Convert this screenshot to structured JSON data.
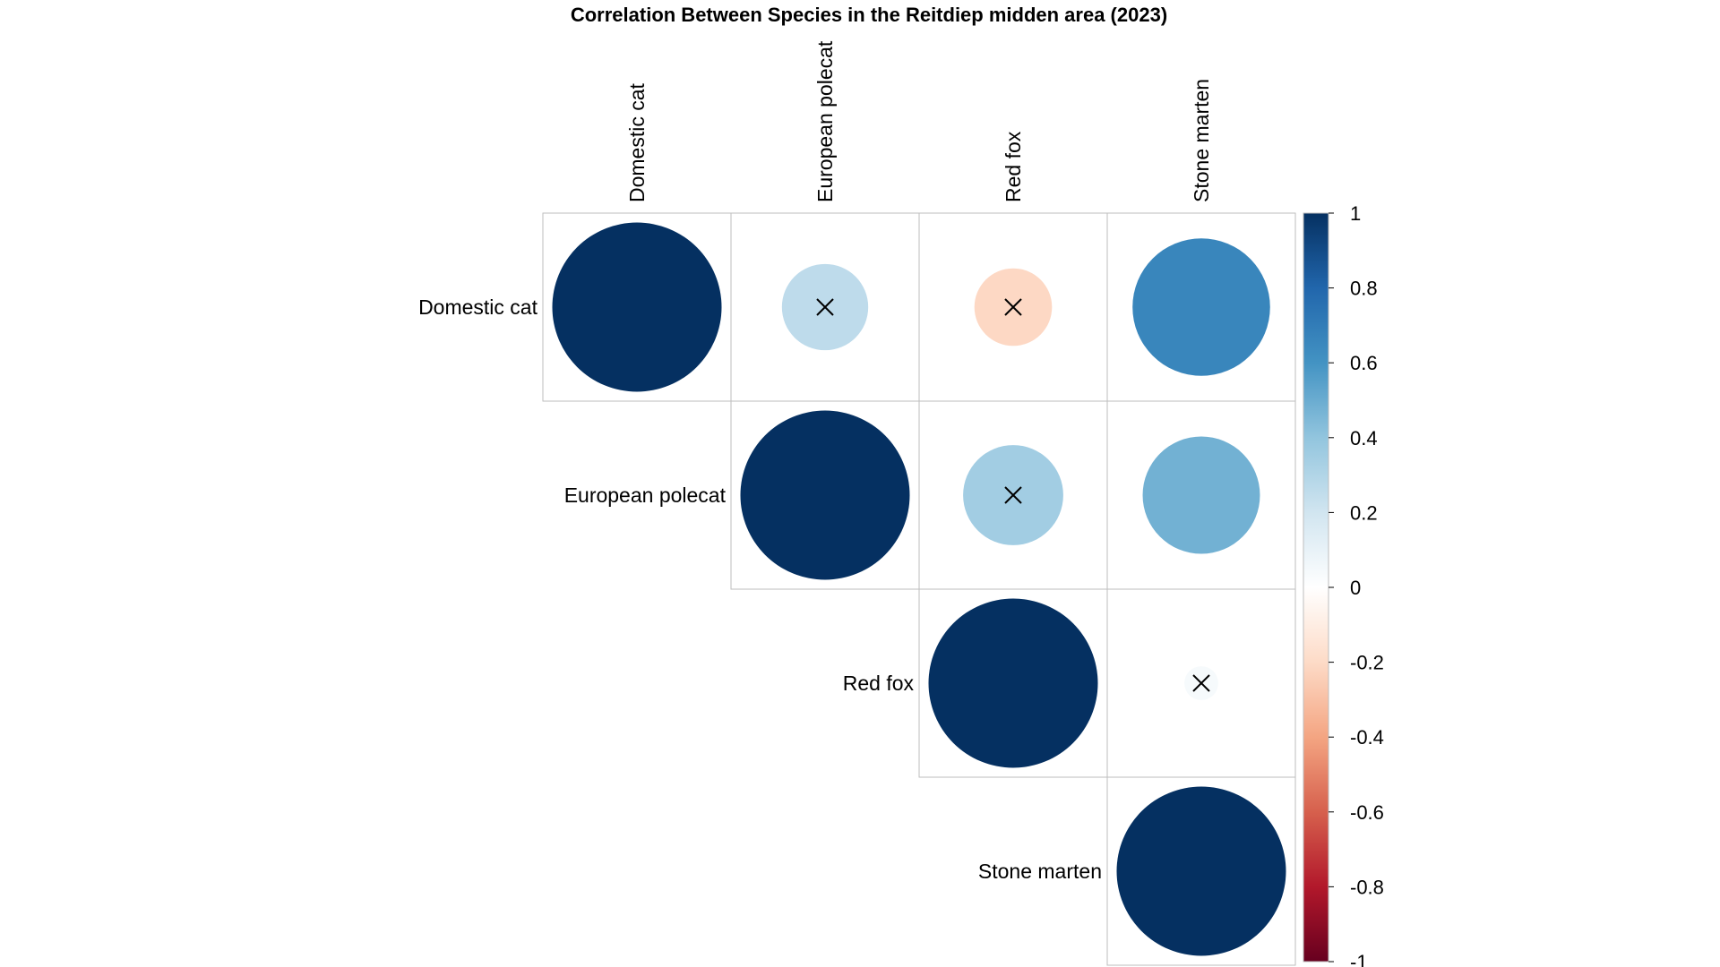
{
  "chart_data": {
    "type": "heatmap",
    "subtype": "correlation-circle-upper",
    "title": "Correlation Between Species in the Reitdiep midden area (2023)",
    "variables": [
      "Domestic cat",
      "European polecat",
      "Red fox",
      "Stone marten"
    ],
    "matrix": [
      [
        1,
        0.26,
        -0.21,
        0.66
      ],
      [
        0.26,
        1,
        0.35,
        0.48
      ],
      [
        -0.21,
        0.35,
        1,
        0.04
      ],
      [
        0.66,
        0.48,
        0.04,
        1
      ]
    ],
    "cells": [
      {
        "row": "Domestic cat",
        "col": "Domestic cat",
        "value": 1,
        "insignificant": false
      },
      {
        "row": "Domestic cat",
        "col": "European polecat",
        "value": 0.26,
        "insignificant": true
      },
      {
        "row": "Domestic cat",
        "col": "Red fox",
        "value": -0.21,
        "insignificant": true
      },
      {
        "row": "Domestic cat",
        "col": "Stone marten",
        "value": 0.66,
        "insignificant": false
      },
      {
        "row": "European polecat",
        "col": "European polecat",
        "value": 1,
        "insignificant": false
      },
      {
        "row": "European polecat",
        "col": "Red fox",
        "value": 0.35,
        "insignificant": true
      },
      {
        "row": "European polecat",
        "col": "Stone marten",
        "value": 0.48,
        "insignificant": false
      },
      {
        "row": "Red fox",
        "col": "Red fox",
        "value": 1,
        "insignificant": false
      },
      {
        "row": "Red fox",
        "col": "Stone marten",
        "value": 0.04,
        "insignificant": true
      },
      {
        "row": "Stone marten",
        "col": "Stone marten",
        "value": 1,
        "insignificant": false
      }
    ],
    "colorbar": {
      "range": [
        -1,
        1
      ],
      "ticks": [
        "1",
        "0.8",
        "0.6",
        "0.4",
        "0.2",
        "0",
        "-0.2",
        "-0.4",
        "-0.6",
        "-0.8",
        "-1"
      ]
    },
    "colors": {
      "negative_strong": "#67001F",
      "neutral": "#FFFFFF",
      "positive_strong": "#053061",
      "grid": "#BEBEBE"
    },
    "grid": true
  }
}
